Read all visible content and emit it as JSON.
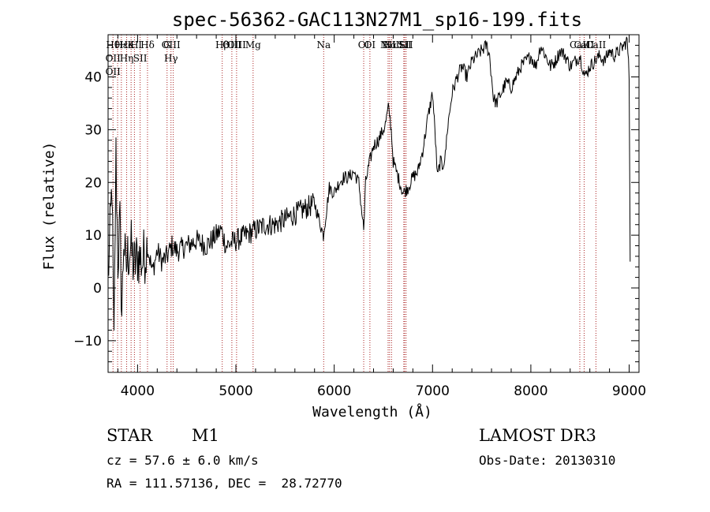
{
  "chart_data": {
    "type": "line",
    "title": "spec-56362-GAC113N27M1_sp16-199.fits",
    "xlabel": "Wavelength (Å)",
    "ylabel": "Flux (relative)",
    "xlim": [
      3700,
      9100
    ],
    "ylim": [
      -16,
      48
    ],
    "xticks": [
      4000,
      5000,
      6000,
      7000,
      8000,
      9000
    ],
    "yticks": [
      -10,
      0,
      10,
      20,
      30,
      40
    ],
    "series": [
      {
        "name": "spectrum",
        "x": [
          3700,
          3720,
          3740,
          3760,
          3780,
          3800,
          3820,
          3840,
          3860,
          3880,
          3900,
          3930,
          3960,
          4000,
          4050,
          4100,
          4150,
          4200,
          4250,
          4300,
          4350,
          4400,
          4500,
          4600,
          4700,
          4800,
          4850,
          4900,
          5000,
          5100,
          5200,
          5300,
          5400,
          5500,
          5600,
          5700,
          5800,
          5890,
          5950,
          6000,
          6050,
          6100,
          6150,
          6200,
          6250,
          6300,
          6320,
          6350,
          6400,
          6450,
          6500,
          6520,
          6550,
          6563,
          6580,
          6600,
          6650,
          6700,
          6750,
          6800,
          6850,
          6900,
          6950,
          7000,
          7030,
          7050,
          7080,
          7100,
          7130,
          7150,
          7200,
          7250,
          7300,
          7350,
          7400,
          7450,
          7500,
          7550,
          7580,
          7600,
          7620,
          7650,
          7700,
          7750,
          7800,
          7850,
          7900,
          7950,
          8000,
          8050,
          8100,
          8150,
          8200,
          8250,
          8300,
          8350,
          8400,
          8450,
          8500,
          8550,
          8600,
          8650,
          8700,
          8750,
          8800,
          8850,
          8900,
          8950,
          8980,
          9000,
          9010
        ],
        "y": [
          2,
          10,
          20,
          -12,
          25,
          5,
          12,
          -5,
          10,
          3,
          6,
          8,
          4,
          6,
          5,
          8,
          3,
          7,
          5,
          6,
          8,
          7,
          8,
          9,
          8,
          10,
          11,
          8,
          9,
          10,
          11,
          12,
          12,
          13,
          14,
          15,
          16,
          10,
          19,
          18,
          20,
          21,
          21,
          22,
          20,
          11,
          20,
          23,
          27,
          28,
          30,
          31,
          34,
          33,
          30,
          24,
          21,
          18,
          19,
          21,
          22,
          26,
          32,
          37,
          28,
          21,
          24,
          23,
          25,
          30,
          37,
          40,
          42,
          40,
          43,
          44,
          45,
          46,
          44,
          40,
          36,
          35,
          37,
          39,
          38,
          40,
          42,
          43,
          44,
          42,
          46,
          44,
          42,
          43,
          45,
          44,
          42,
          43,
          44,
          40,
          42,
          43,
          44,
          43,
          45,
          44,
          45,
          46,
          47,
          40,
          5
        ]
      }
    ],
    "lines": [
      {
        "wave": 3750,
        "labels": [
          "Hθ",
          "OII",
          "OII"
        ]
      },
      {
        "wave": 3797,
        "labels": [
          ""
        ]
      },
      {
        "wave": 3835,
        "labels": [
          "Hε"
        ]
      },
      {
        "wave": 3889,
        "labels": [
          "He",
          "Hη"
        ]
      },
      {
        "wave": 3934,
        "labels": [
          "K"
        ]
      },
      {
        "wave": 3968,
        "labels": [
          "H"
        ]
      },
      {
        "wave": 4026,
        "labels": [
          "I",
          "SII"
        ]
      },
      {
        "wave": 4101,
        "labels": [
          "Hδ"
        ]
      },
      {
        "wave": 4300,
        "labels": [
          "G"
        ]
      },
      {
        "wave": 4340,
        "labels": [
          "OIII",
          "Hγ"
        ]
      },
      {
        "wave": 4363,
        "labels": [
          ""
        ]
      },
      {
        "wave": 4861,
        "labels": [
          "Hβ"
        ]
      },
      {
        "wave": 4959,
        "labels": [
          "OIII"
        ]
      },
      {
        "wave": 5007,
        "labels": [
          "OIII"
        ]
      },
      {
        "wave": 5175,
        "labels": [
          "Mg"
        ]
      },
      {
        "wave": 5893,
        "labels": [
          "Na"
        ]
      },
      {
        "wave": 6300,
        "labels": [
          "OI"
        ]
      },
      {
        "wave": 6363,
        "labels": [
          "OI"
        ]
      },
      {
        "wave": 6548,
        "labels": [
          "NII"
        ]
      },
      {
        "wave": 6563,
        "labels": [
          "Hα"
        ]
      },
      {
        "wave": 6583,
        "labels": [
          "NII"
        ]
      },
      {
        "wave": 6708,
        "labels": [
          "Li"
        ]
      },
      {
        "wave": 6716,
        "labels": [
          "SII"
        ]
      },
      {
        "wave": 6731,
        "labels": [
          "SII"
        ]
      },
      {
        "wave": 8498,
        "labels": [
          "CaII"
        ]
      },
      {
        "wave": 8542,
        "labels": [
          "CaII"
        ]
      },
      {
        "wave": 8662,
        "labels": [
          "CaII"
        ]
      }
    ],
    "colors": {
      "spectrum": "#000000",
      "lines": "#aa2222",
      "axes": "#000000"
    }
  },
  "info": {
    "class": "STAR",
    "subclass": "M1",
    "survey": "LAMOST DR3",
    "cz": "cz = 57.6 ± 6.0 km/s",
    "obsdate": "Obs-Date: 20130310",
    "radec": "RA = 111.57136, DEC =  28.72770"
  }
}
